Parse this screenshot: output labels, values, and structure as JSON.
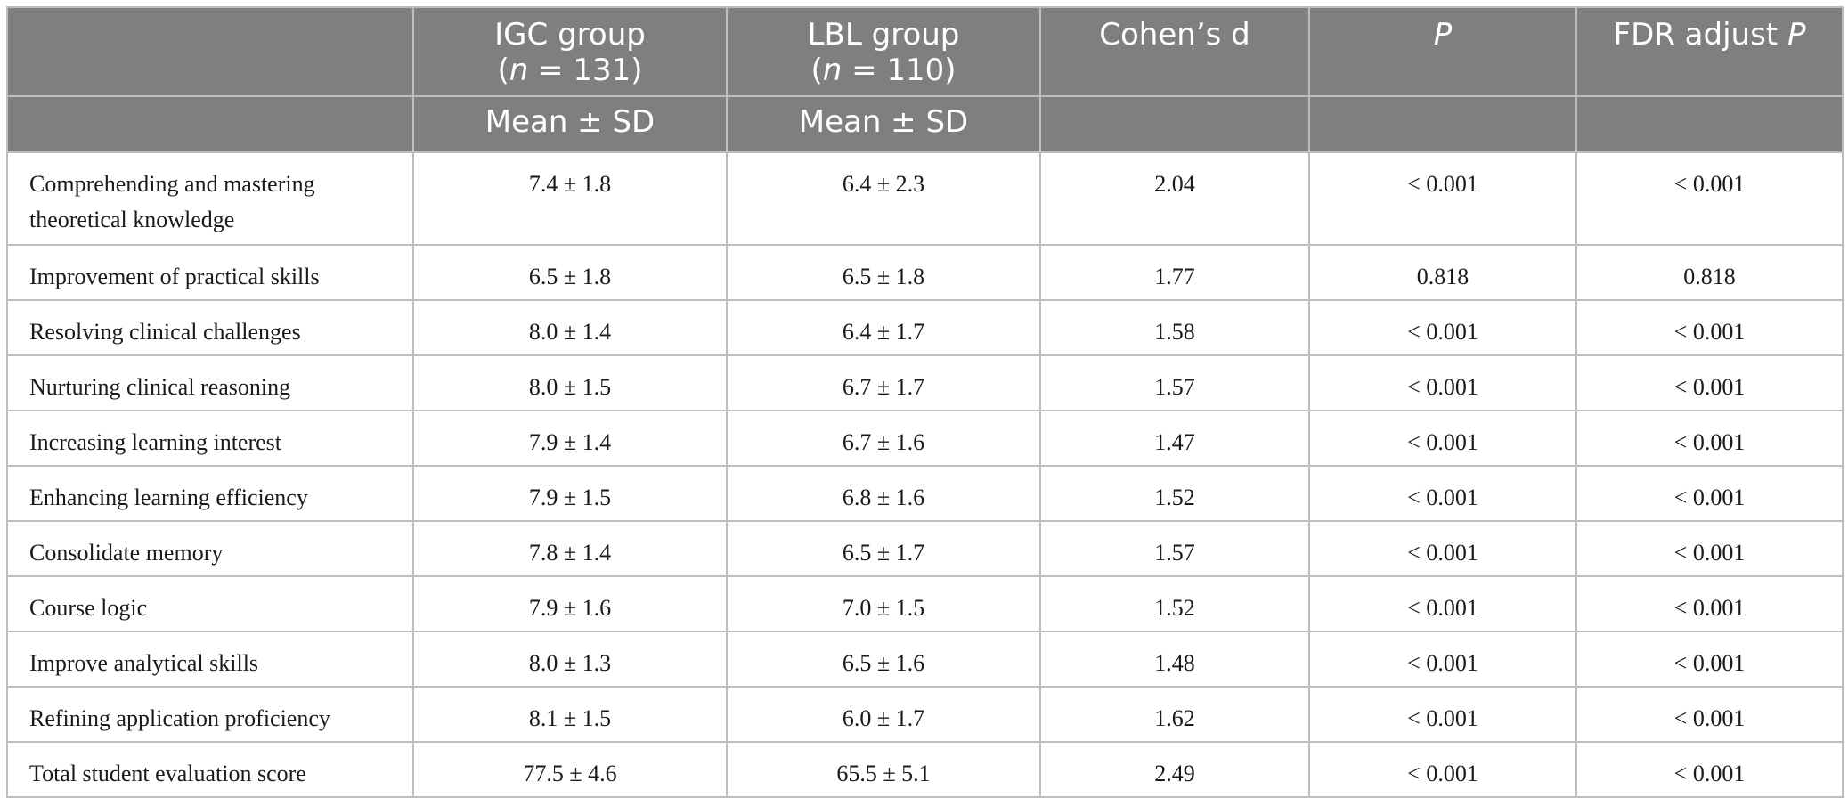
{
  "table": {
    "header": {
      "igc_label": "IGC group",
      "igc_n_var": "n",
      "igc_n_rest": " = 131)",
      "lbl_label": "LBL group",
      "lbl_n_var": "n",
      "lbl_n_rest": " = 110)",
      "cohens_d": "Cohen’s d",
      "p": "P",
      "fdr_prefix": "FDR adjust ",
      "fdr_p": "P",
      "igc_sub": "Mean ± SD",
      "lbl_sub": "Mean ± SD"
    },
    "rows": [
      {
        "label": "Comprehending and mastering theoretical knowledge",
        "igc": "7.4 ± 1.8",
        "lbl": "6.4 ± 2.3",
        "d": "2.04",
        "p": "< 0.001",
        "fdr": "< 0.001"
      },
      {
        "label": "Improvement of practical skills",
        "igc": "6.5 ± 1.8",
        "lbl": "6.5 ± 1.8",
        "d": "1.77",
        "p": "0.818",
        "fdr": "0.818"
      },
      {
        "label": "Resolving clinical challenges",
        "igc": "8.0 ± 1.4",
        "lbl": "6.4 ± 1.7",
        "d": "1.58",
        "p": "< 0.001",
        "fdr": "< 0.001"
      },
      {
        "label": "Nurturing clinical reasoning",
        "igc": "8.0 ± 1.5",
        "lbl": "6.7 ± 1.7",
        "d": "1.57",
        "p": "< 0.001",
        "fdr": "< 0.001"
      },
      {
        "label": "Increasing learning interest",
        "igc": "7.9 ± 1.4",
        "lbl": "6.7 ± 1.6",
        "d": "1.47",
        "p": "< 0.001",
        "fdr": "< 0.001"
      },
      {
        "label": "Enhancing learning efficiency",
        "igc": "7.9 ± 1.5",
        "lbl": "6.8 ± 1.6",
        "d": "1.52",
        "p": "< 0.001",
        "fdr": "< 0.001"
      },
      {
        "label": "Consolidate memory",
        "igc": "7.8 ± 1.4",
        "lbl": "6.5 ± 1.7",
        "d": "1.57",
        "p": "< 0.001",
        "fdr": "< 0.001"
      },
      {
        "label": "Course logic",
        "igc": "7.9 ± 1.6",
        "lbl": "7.0 ± 1.5",
        "d": "1.52",
        "p": "< 0.001",
        "fdr": "< 0.001"
      },
      {
        "label": "Improve analytical skills",
        "igc": "8.0 ± 1.3",
        "lbl": "6.5 ± 1.6",
        "d": "1.48",
        "p": "< 0.001",
        "fdr": "< 0.001"
      },
      {
        "label": "Refining application proficiency",
        "igc": "8.1 ± 1.5",
        "lbl": "6.0 ± 1.7",
        "d": "1.62",
        "p": "< 0.001",
        "fdr": "< 0.001"
      },
      {
        "label": "Total student evaluation score",
        "igc": "77.5 ± 4.6",
        "lbl": "65.5 ± 5.1",
        "d": "2.49",
        "p": "< 0.001",
        "fdr": "< 0.001"
      }
    ]
  }
}
